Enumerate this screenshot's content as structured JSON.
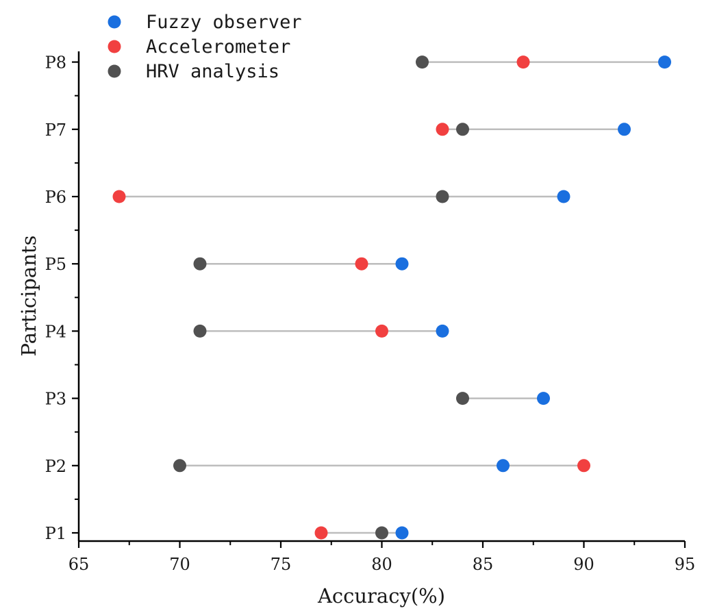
{
  "chart_data": {
    "type": "scatter",
    "subtype": "dumbbell",
    "title": "",
    "xlabel": "Accuracy(%)",
    "ylabel": "Participants",
    "xlim": [
      65,
      95
    ],
    "xticks": [
      "65",
      "70",
      "75",
      "80",
      "85",
      "90",
      "95"
    ],
    "categories": [
      "P1",
      "P2",
      "P3",
      "P4",
      "P5",
      "P6",
      "P7",
      "P8"
    ],
    "grid": false,
    "legend_position": "top-left",
    "connector_color": "#bdbdbd",
    "series": [
      {
        "name": "Fuzzy observer",
        "color": "#1a6fdf",
        "values": [
          81,
          86,
          88,
          83,
          81,
          89,
          92,
          94
        ]
      },
      {
        "name": "Accelerometer",
        "color": "#f14040",
        "values": [
          77,
          90,
          null,
          80,
          79,
          67,
          83,
          87
        ]
      },
      {
        "name": "HRV analysis",
        "color": "#515151",
        "values": [
          80,
          70,
          84,
          71,
          71,
          83,
          84,
          82
        ]
      }
    ]
  }
}
